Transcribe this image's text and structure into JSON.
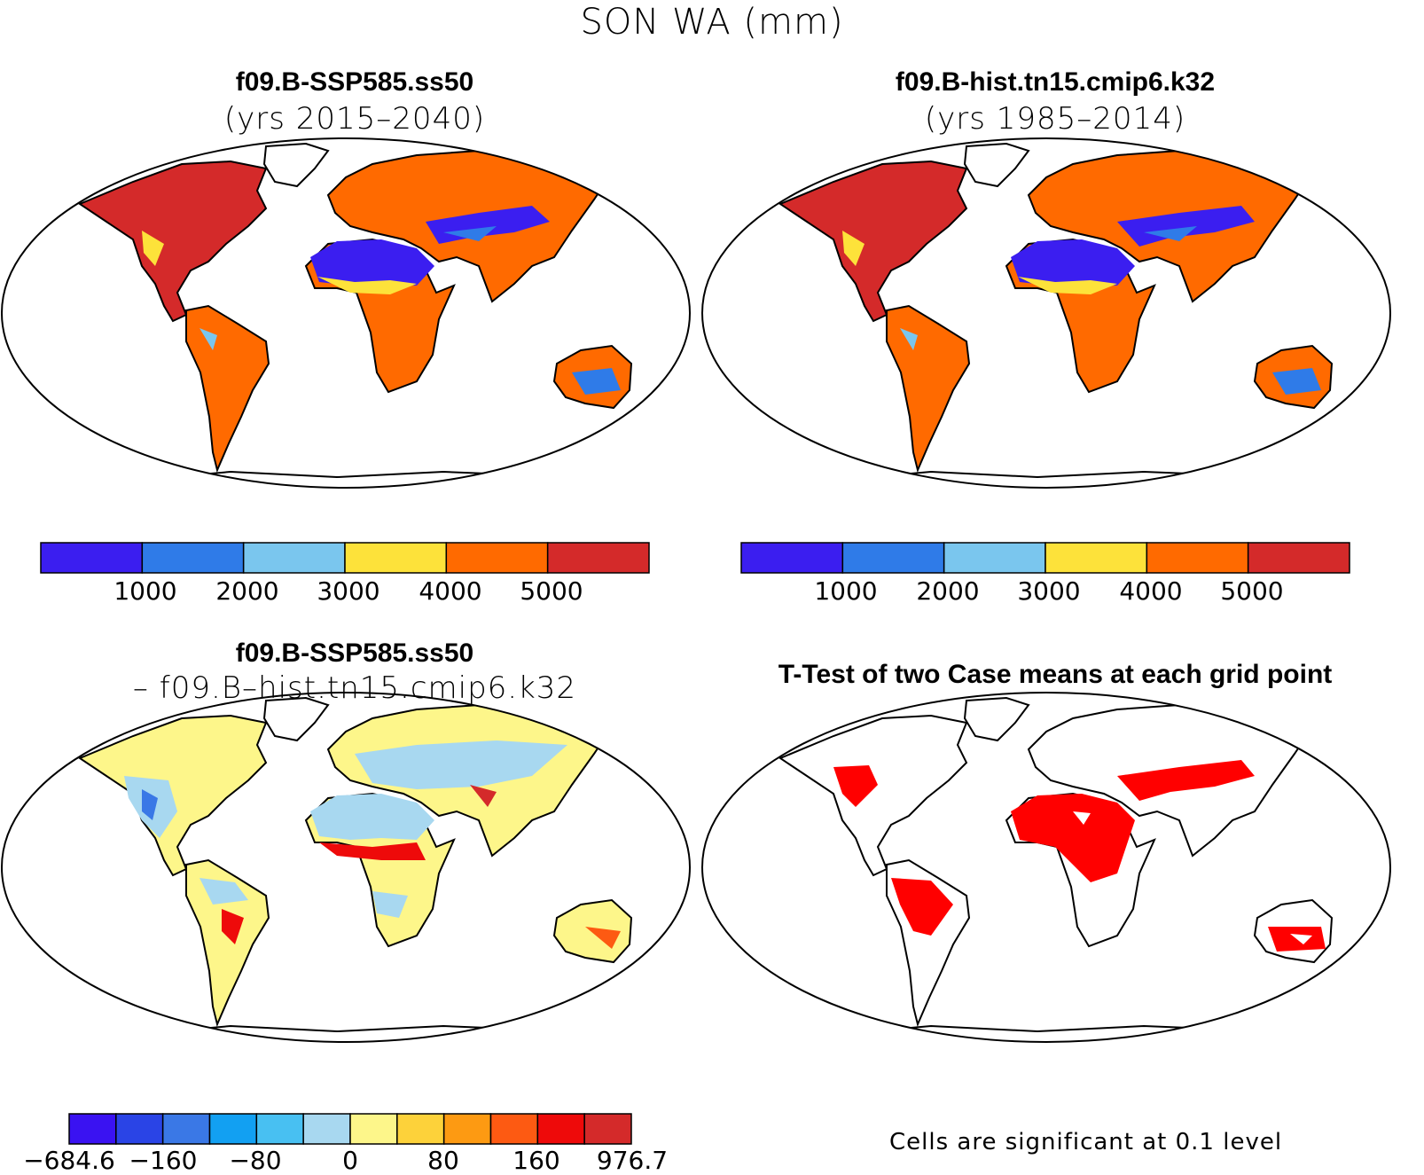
{
  "figure": {
    "title": "SON WA (mm)"
  },
  "panels": [
    {
      "id": "ssp585",
      "title": "f09.B-SSP585.ss50",
      "subtitle": "(yrs 2015–2040)"
    },
    {
      "id": "hist",
      "title": "f09.B-hist.tn15.cmip6.k32",
      "subtitle": "(yrs 1985–2014)"
    },
    {
      "id": "diff",
      "title": "f09.B-SSP585.ss50",
      "subtitle": "– f09.B–hist.tn15.cmip6.k32"
    },
    {
      "id": "ttest",
      "title": "T-Test of two Case means at each grid point",
      "subtitle": ""
    }
  ],
  "colorbars": {
    "absolute": {
      "colors": [
        "#3b1ef0",
        "#2f7be8",
        "#7ac6ee",
        "#fde23a",
        "#ff6a00",
        "#d42a2a"
      ],
      "labels": [
        "1000",
        "2000",
        "3000",
        "4000",
        "5000"
      ]
    },
    "difference": {
      "colors": [
        "#3a12f2",
        "#2a44e6",
        "#3a78e6",
        "#12a0f2",
        "#48c0f2",
        "#a8d8f0",
        "#fdf68a",
        "#fdd23a",
        "#fd9a12",
        "#fd5a12",
        "#ee0a0a",
        "#d42a2a"
      ],
      "labels": [
        "−684.6",
        "−160",
        "−80",
        "0",
        "80",
        "160",
        "976.7"
      ]
    }
  },
  "ttest_note": "Cells are significant at 0.1 level",
  "significance_color": "#ff0000"
}
